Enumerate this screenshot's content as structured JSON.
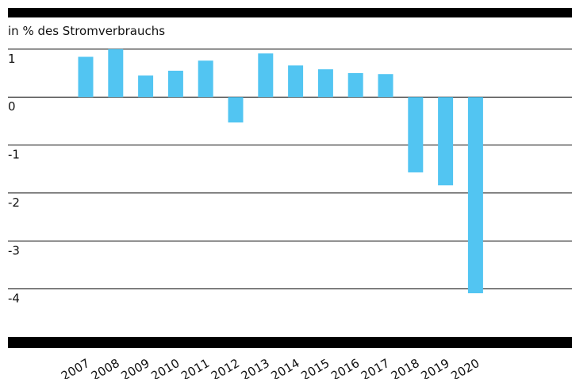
{
  "chart_data": {
    "type": "bar",
    "y_label": "in % des Stromverbrauchs",
    "categories": [
      "2007",
      "2008",
      "2009",
      "2010",
      "2011",
      "2012",
      "2013",
      "2014",
      "2015",
      "2016",
      "2017",
      "2018",
      "2019",
      "2020"
    ],
    "values": [
      0.84,
      1.0,
      0.45,
      0.55,
      0.76,
      -0.53,
      0.91,
      0.66,
      0.58,
      0.5,
      0.48,
      -1.57,
      -1.84,
      -4.09
    ],
    "color": "#52c5f2",
    "ylim": [
      -5,
      1.66
    ],
    "yticks": [
      -4,
      -3,
      -2,
      -1,
      0,
      1
    ],
    "grid": true
  }
}
